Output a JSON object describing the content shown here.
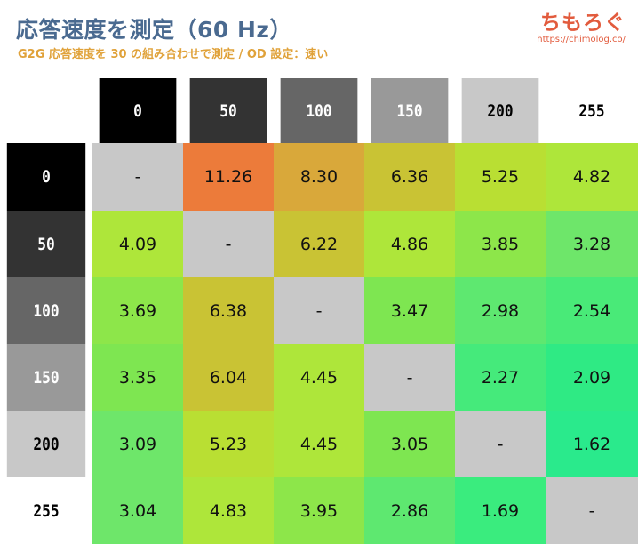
{
  "header": {
    "title": "応答速度を測定（60 Hz）",
    "subtitle": "G2G 応答速度を 30 の組み合わせで測定 / OD 設定：速い",
    "brand": "ちもろぐ",
    "brand_url": "https://chimolog.co/"
  },
  "chart_data": {
    "type": "heatmap",
    "title": "応答速度を測定（60 Hz）",
    "subtitle": "G2G 応答速度を 30 の組み合わせで測定 / OD 設定：速い",
    "columns": [
      "0",
      "50",
      "100",
      "150",
      "200",
      "255"
    ],
    "rows": [
      "0",
      "50",
      "100",
      "150",
      "200",
      "255"
    ],
    "values": [
      [
        null,
        11.26,
        8.3,
        6.36,
        5.25,
        4.82
      ],
      [
        4.09,
        null,
        6.22,
        4.86,
        3.85,
        3.28
      ],
      [
        3.69,
        6.38,
        null,
        3.47,
        2.98,
        2.54
      ],
      [
        3.35,
        6.04,
        4.45,
        null,
        2.27,
        2.09
      ],
      [
        3.09,
        5.23,
        4.45,
        3.05,
        null,
        1.62
      ],
      [
        3.04,
        4.83,
        3.95,
        2.86,
        1.69,
        null
      ]
    ],
    "value_labels": [
      [
        "-",
        "11.26",
        "8.30",
        "6.36",
        "5.25",
        "4.82"
      ],
      [
        "4.09",
        "-",
        "6.22",
        "4.86",
        "3.85",
        "3.28"
      ],
      [
        "3.69",
        "6.38",
        "-",
        "3.47",
        "2.98",
        "2.54"
      ],
      [
        "3.35",
        "6.04",
        "4.45",
        "-",
        "2.27",
        "2.09"
      ],
      [
        "3.09",
        "5.23",
        "4.45",
        "3.05",
        "-",
        "1.62"
      ],
      [
        "3.04",
        "4.83",
        "3.95",
        "2.86",
        "1.69",
        "-"
      ]
    ],
    "cell_colors": [
      [
        "#c8c8c8",
        "#ec7b3a",
        "#d9a83a",
        "#c9c334",
        "#b9df33",
        "#aee63a"
      ],
      [
        "#aee63a",
        "#c8c8c8",
        "#c9c334",
        "#aee63a",
        "#8de64a",
        "#6ee66a"
      ],
      [
        "#8de64a",
        "#c9c334",
        "#c8c8c8",
        "#7ee651",
        "#5ee870",
        "#49ea78"
      ],
      [
        "#7ee651",
        "#c9c334",
        "#aee63a",
        "#c8c8c8",
        "#45ea7b",
        "#2fea84"
      ],
      [
        "#6ee66a",
        "#b9df33",
        "#aee63a",
        "#7ee651",
        "#c8c8c8",
        "#2aea8c"
      ],
      [
        "#6ee66a",
        "#aee63a",
        "#8de64a",
        "#5ee870",
        "#3aec7e",
        "#c8c8c8"
      ]
    ],
    "header_colors": {
      "bg": [
        "#000000",
        "#333333",
        "#666666",
        "#999999",
        "#c8c8c8",
        "#ffffff"
      ],
      "text": [
        "#ffffff",
        "#ffffff",
        "#ffffff",
        "#ffffff",
        "#000000",
        "#000000"
      ]
    }
  }
}
